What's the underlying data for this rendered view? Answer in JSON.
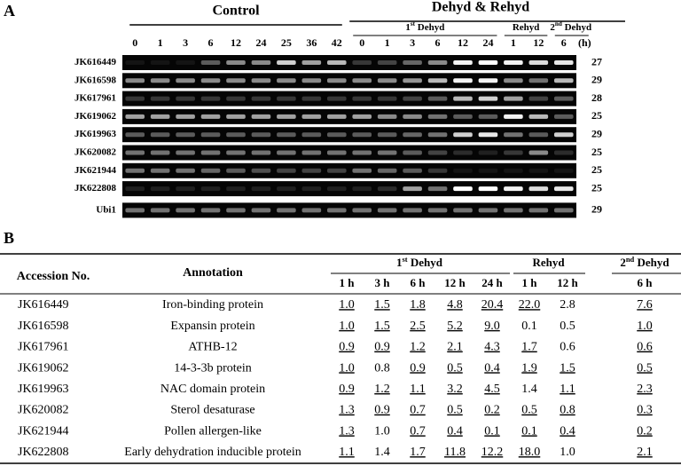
{
  "panel_a": {
    "label": "A",
    "control": {
      "title": "Control",
      "times": [
        0,
        1,
        3,
        6,
        12,
        24,
        25,
        36,
        42
      ]
    },
    "treatment": {
      "title": "Dehyd  & Rehyd",
      "groups": [
        {
          "title": [
            "1",
            "st",
            " Dehyd"
          ],
          "times": [
            0,
            1,
            3,
            6,
            12,
            24
          ]
        },
        {
          "title": [
            "Rehyd"
          ],
          "times": [
            1,
            12
          ]
        },
        {
          "title": [
            "2",
            "nd",
            " Dehyd"
          ],
          "times": [
            6
          ]
        }
      ]
    },
    "unit": "(h)",
    "rows": [
      {
        "gene": "JK616449",
        "cycles": 27,
        "bands": [
          0,
          0,
          0,
          0.3,
          0.5,
          0.5,
          0.8,
          0.6,
          0.7,
          0.15,
          0.2,
          0.35,
          0.5,
          0.95,
          1,
          0.95,
          0.85,
          0.9
        ]
      },
      {
        "gene": "JK616598",
        "cycles": 29,
        "bands": [
          0.5,
          0.5,
          0.5,
          0.5,
          0.5,
          0.5,
          0.5,
          0.5,
          0.5,
          0.5,
          0.5,
          0.55,
          0.7,
          0.95,
          0.95,
          0.5,
          0.4,
          0.7
        ]
      },
      {
        "gene": "JK617961",
        "cycles": 28,
        "bands": [
          0.15,
          0.15,
          0.15,
          0.15,
          0.15,
          0.15,
          0.15,
          0.15,
          0.15,
          0.15,
          0.15,
          0.2,
          0.3,
          0.7,
          0.8,
          0.6,
          0.2,
          0.3
        ]
      },
      {
        "gene": "JK619062",
        "cycles": 25,
        "bands": [
          0.6,
          0.6,
          0.6,
          0.6,
          0.6,
          0.6,
          0.6,
          0.6,
          0.6,
          0.6,
          0.5,
          0.5,
          0.4,
          0.3,
          0.3,
          0.95,
          0.7,
          0.3
        ]
      },
      {
        "gene": "JK619963",
        "cycles": 29,
        "bands": [
          0.3,
          0.3,
          0.3,
          0.3,
          0.3,
          0.3,
          0.3,
          0.3,
          0.3,
          0.3,
          0.3,
          0.35,
          0.4,
          0.8,
          0.9,
          0.4,
          0.3,
          0.8
        ]
      },
      {
        "gene": "JK620082",
        "cycles": 25,
        "bands": [
          0.4,
          0.4,
          0.4,
          0.4,
          0.4,
          0.4,
          0.4,
          0.4,
          0.4,
          0.4,
          0.4,
          0.3,
          0.2,
          0.1,
          0.05,
          0.15,
          0.5,
          0.1
        ]
      },
      {
        "gene": "JK621944",
        "cycles": 25,
        "bands": [
          0.4,
          0.4,
          0.4,
          0.35,
          0.3,
          0.25,
          0.2,
          0.2,
          0.2,
          0.4,
          0.35,
          0.3,
          0.15,
          0,
          0,
          0,
          0,
          0
        ]
      },
      {
        "gene": "JK622808",
        "cycles": 25,
        "bands": [
          0.05,
          0.05,
          0.05,
          0.05,
          0.05,
          0.05,
          0.05,
          0.05,
          0.05,
          0.05,
          0.1,
          0.6,
          0.4,
          1,
          1,
          0.95,
          0.85,
          0.9
        ]
      },
      {
        "gene": "Ubi1",
        "cycles": 29,
        "bands": [
          0.4,
          0.4,
          0.4,
          0.4,
          0.4,
          0.4,
          0.4,
          0.4,
          0.4,
          0.4,
          0.4,
          0.4,
          0.4,
          0.4,
          0.4,
          0.4,
          0.4,
          0.4
        ]
      }
    ]
  },
  "panel_b": {
    "label": "B",
    "header": {
      "accession": "Accession No.",
      "annotation": "Annotation",
      "groups": [
        {
          "title": [
            "1",
            "st",
            " Dehyd"
          ],
          "times": [
            "1 h",
            "3 h",
            "6 h",
            "12 h",
            "24 h"
          ]
        },
        {
          "title": [
            "Rehyd"
          ],
          "times": [
            "1 h",
            "12 h"
          ]
        },
        {
          "title": [
            "2",
            "nd",
            " Dehyd"
          ],
          "times": [
            "6 h"
          ]
        }
      ]
    },
    "rows": [
      {
        "accession": "JK616449",
        "annotation": "Iron-binding protein",
        "values": [
          "1.0",
          "1.5",
          "1.8",
          "4.8",
          "20.4",
          "22.0",
          "2.8",
          "7.6"
        ],
        "underlined": [
          true,
          true,
          true,
          true,
          true,
          true,
          false,
          true
        ]
      },
      {
        "accession": "JK616598",
        "annotation": "Expansin protein",
        "values": [
          "1.0",
          "1.5",
          "2.5",
          "5.2",
          "9.0",
          "0.1",
          "0.5",
          "1.0"
        ],
        "underlined": [
          true,
          true,
          true,
          true,
          true,
          false,
          false,
          true
        ]
      },
      {
        "accession": "JK617961",
        "annotation": "ATHB-12",
        "values": [
          "0.9",
          "0.9",
          "1.2",
          "2.1",
          "4.3",
          "1.7",
          "0.6",
          "0.6"
        ],
        "underlined": [
          true,
          true,
          true,
          true,
          true,
          true,
          false,
          true
        ]
      },
      {
        "accession": "JK619062",
        "annotation": "14-3-3b protein",
        "values": [
          "1.0",
          "0.8",
          "0.9",
          "0.5",
          "0.4",
          "1.9",
          "1.5",
          "0.5"
        ],
        "underlined": [
          true,
          false,
          true,
          true,
          true,
          true,
          true,
          true
        ]
      },
      {
        "accession": "JK619963",
        "annotation": "NAC domain protein",
        "values": [
          "0.9",
          "1.2",
          "1.1",
          "3.2",
          "4.5",
          "1.4",
          "1.1",
          "2.3"
        ],
        "underlined": [
          true,
          true,
          true,
          true,
          true,
          false,
          true,
          true
        ]
      },
      {
        "accession": "JK620082",
        "annotation": "Sterol desaturase",
        "values": [
          "1.3",
          "0.9",
          "0.7",
          "0.5",
          "0.2",
          "0.5",
          "0.8",
          "0.3"
        ],
        "underlined": [
          true,
          true,
          true,
          true,
          true,
          true,
          true,
          true
        ]
      },
      {
        "accession": "JK621944",
        "annotation": "Pollen allergen-like",
        "values": [
          "1.3",
          "1.0",
          "0.7",
          "0.4",
          "0.1",
          "0.1",
          "0.4",
          "0.2"
        ],
        "underlined": [
          true,
          false,
          true,
          true,
          true,
          true,
          true,
          true
        ]
      },
      {
        "accession": "JK622808",
        "annotation": "Early dehydration inducible protein",
        "values": [
          "1.1",
          "1.4",
          "1.7",
          "11.8",
          "12.2",
          "18.0",
          "1.0",
          "2.1"
        ],
        "underlined": [
          true,
          false,
          true,
          true,
          true,
          true,
          false,
          true
        ]
      }
    ]
  }
}
